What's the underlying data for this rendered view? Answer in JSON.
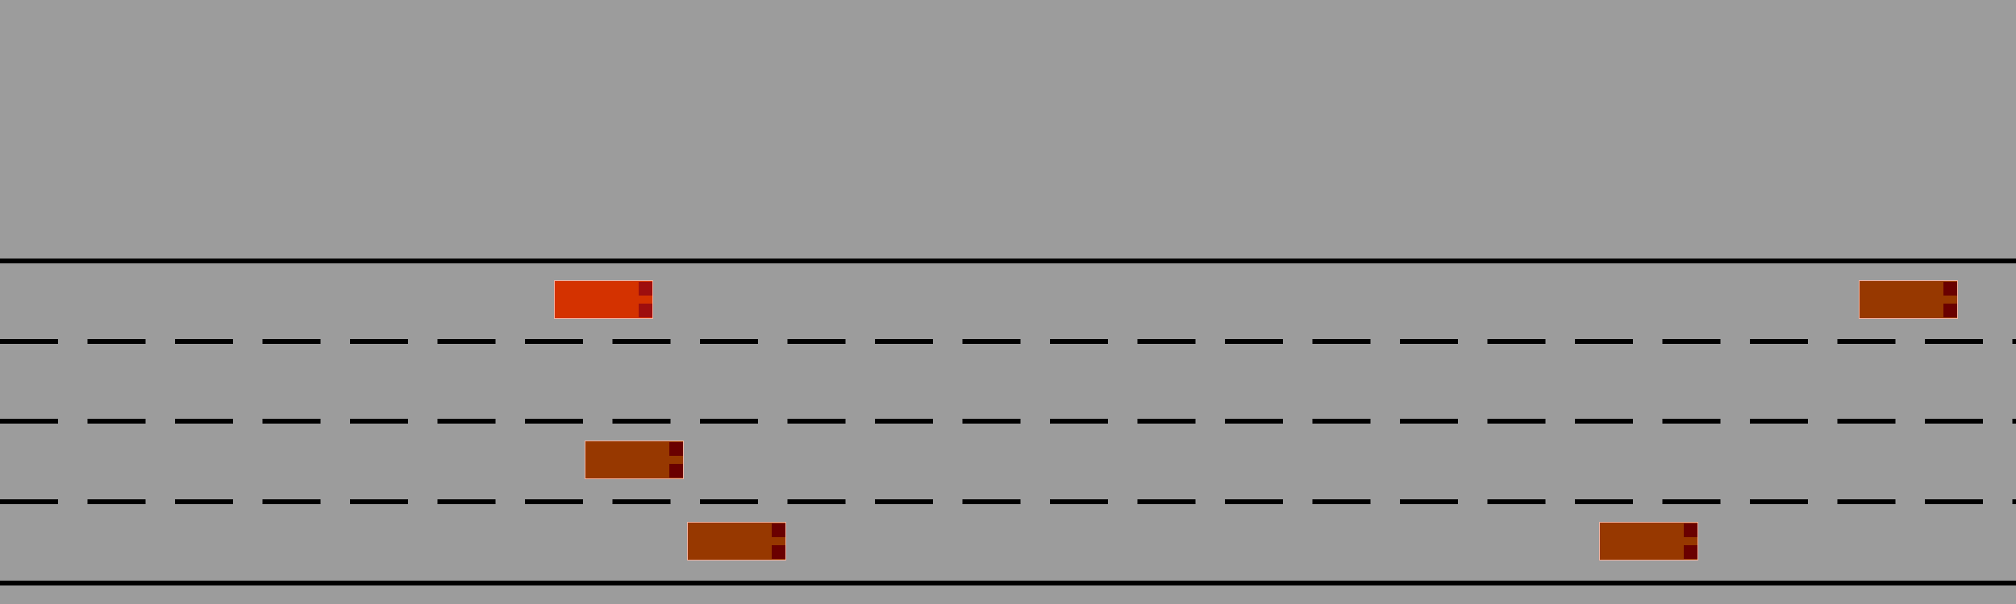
{
  "scene": {
    "type": "highway-lane-driving",
    "lane_count": 4,
    "road_color": "#9c9c9c",
    "line_color": "#000000"
  },
  "vehicles": [
    {
      "id": "ego",
      "role": "ego",
      "color": "#d43200",
      "light_color": "#9e0e0e",
      "lane": 1
    },
    {
      "id": "car-2",
      "role": "other",
      "color": "#973800",
      "light_color": "#6a0000",
      "lane": 1
    },
    {
      "id": "car-3",
      "role": "other",
      "color": "#973800",
      "light_color": "#6a0000",
      "lane": 3
    },
    {
      "id": "car-4",
      "role": "other",
      "color": "#973800",
      "light_color": "#6a0000",
      "lane": 4
    },
    {
      "id": "car-5",
      "role": "other",
      "color": "#973800",
      "light_color": "#6a0000",
      "lane": 4
    }
  ]
}
